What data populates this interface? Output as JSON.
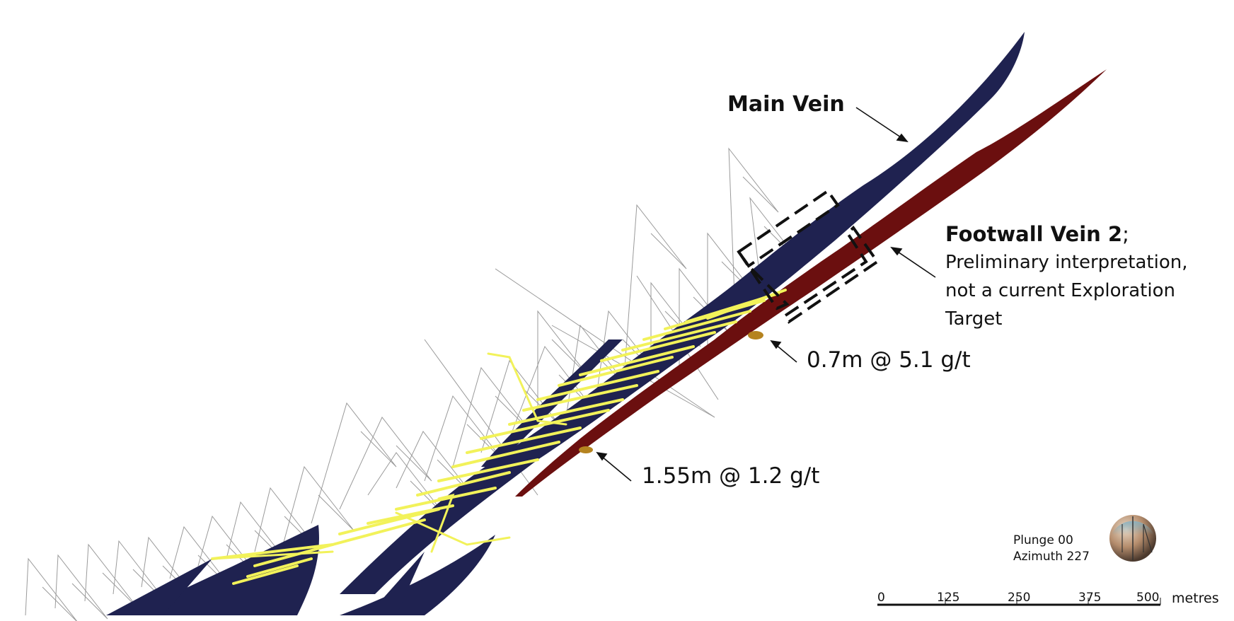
{
  "labels": {
    "main_vein": "Main Vein",
    "footwall_title": "Footwall Vein 2",
    "footwall_suffix": ";",
    "footwall_line2": "Preliminary interpretation,",
    "footwall_line3": "not a current Exploration",
    "footwall_line4": "Target",
    "intercept_1": "0.7m @ 5.1 g/t",
    "intercept_2": "1.55m @ 1.2 g/t"
  },
  "view": {
    "plunge": "Plunge 00",
    "azimuth": "Azimuth 227"
  },
  "scale_bar": {
    "ticks": [
      "0",
      "125",
      "250",
      "375",
      "500"
    ],
    "unit": "metres"
  },
  "colors": {
    "main_vein": "#1f2250",
    "footwall_vein": "#6b0f0f",
    "workings": "#f2f25a",
    "drillholes": "#9a9a9a",
    "background": "#ffffff"
  }
}
